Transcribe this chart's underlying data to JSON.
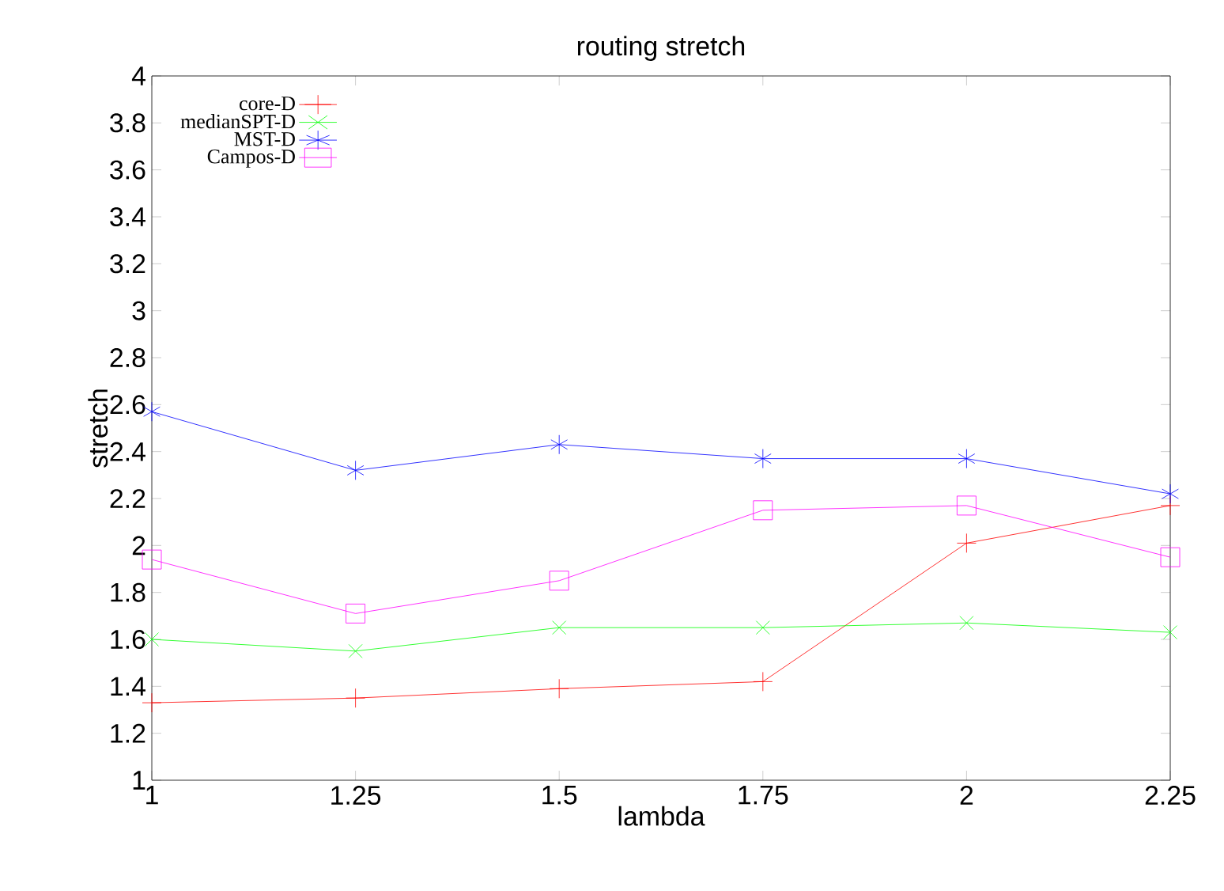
{
  "chart_data": {
    "type": "line",
    "title": "routing stretch",
    "xlabel": "lambda",
    "ylabel": "stretch",
    "x": [
      1,
      1.25,
      1.5,
      1.75,
      2,
      2.25
    ],
    "series": [
      {
        "name": "core-D",
        "color": "#ff0000",
        "marker": "cross",
        "values": [
          1.33,
          1.35,
          1.39,
          1.42,
          2.01,
          2.17
        ]
      },
      {
        "name": "medianSPT-D",
        "color": "#00ff00",
        "marker": "cross",
        "values": [
          1.6,
          1.55,
          1.65,
          1.65,
          1.67,
          1.63
        ]
      },
      {
        "name": "MST-D",
        "color": "#0000ff",
        "marker": "cross",
        "values": [
          2.57,
          2.32,
          2.43,
          2.37,
          2.37,
          2.22
        ]
      },
      {
        "name": "Campos-D",
        "color": "#ff00ff",
        "marker": "square",
        "values": [
          1.94,
          1.71,
          1.85,
          2.15,
          2.17,
          1.95
        ]
      }
    ],
    "xlim": [
      1,
      2.25
    ],
    "xticks": [
      1,
      1.25,
      1.5,
      1.75,
      2,
      2.25
    ],
    "ylim": [
      1,
      4
    ],
    "yticks": [
      1,
      1.2,
      1.4,
      1.6,
      1.8,
      2,
      2.2,
      2.4,
      2.6,
      2.8,
      3,
      3.2,
      3.4,
      3.6,
      3.8,
      4
    ],
    "grid": false,
    "legend": "top left"
  }
}
